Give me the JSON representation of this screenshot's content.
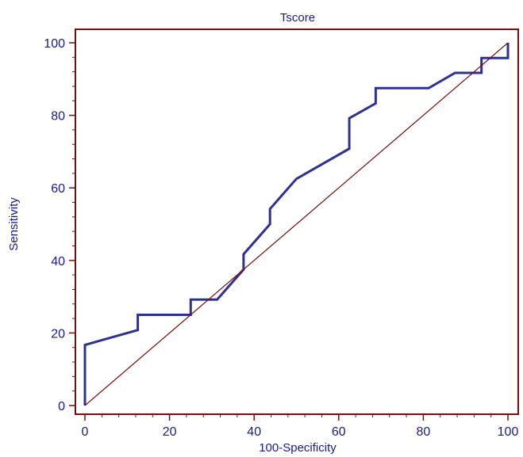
{
  "chart_data": {
    "type": "line",
    "title": "Tscore",
    "xlabel": "100-Specificity",
    "ylabel": "Sensitivity",
    "xlim": [
      0,
      100
    ],
    "ylim": [
      0,
      100
    ],
    "x_ticks": [
      "0",
      "20",
      "40",
      "60",
      "80",
      "100"
    ],
    "y_ticks": [
      "0",
      "20",
      "40",
      "60",
      "80",
      "100"
    ],
    "grid": false,
    "series": [
      {
        "color": "#2e3192",
        "x": [
          0,
          0,
          12.5,
          12.5,
          25,
          25,
          31.25,
          37.5,
          37.5,
          43.75,
          43.75,
          50,
          62.5,
          62.5,
          68.75,
          68.75,
          81.25,
          87.5,
          93.75,
          93.75,
          100,
          100
        ],
        "y": [
          0,
          16.7,
          20.8,
          25,
          25,
          29.2,
          29.2,
          37.5,
          41.7,
          50,
          54.2,
          62.5,
          70.8,
          79.2,
          83.3,
          87.5,
          87.5,
          91.7,
          91.7,
          95.8,
          95.8,
          100
        ]
      },
      {
        "color": "#7b0c0c",
        "x": [
          0,
          100
        ],
        "y": [
          0,
          100
        ]
      }
    ],
    "colors": {
      "axes": "#7b0c0c",
      "text": "#1a1a8c",
      "roc_curve": "#2e3192",
      "diagonal": "#7b0c0c"
    }
  }
}
